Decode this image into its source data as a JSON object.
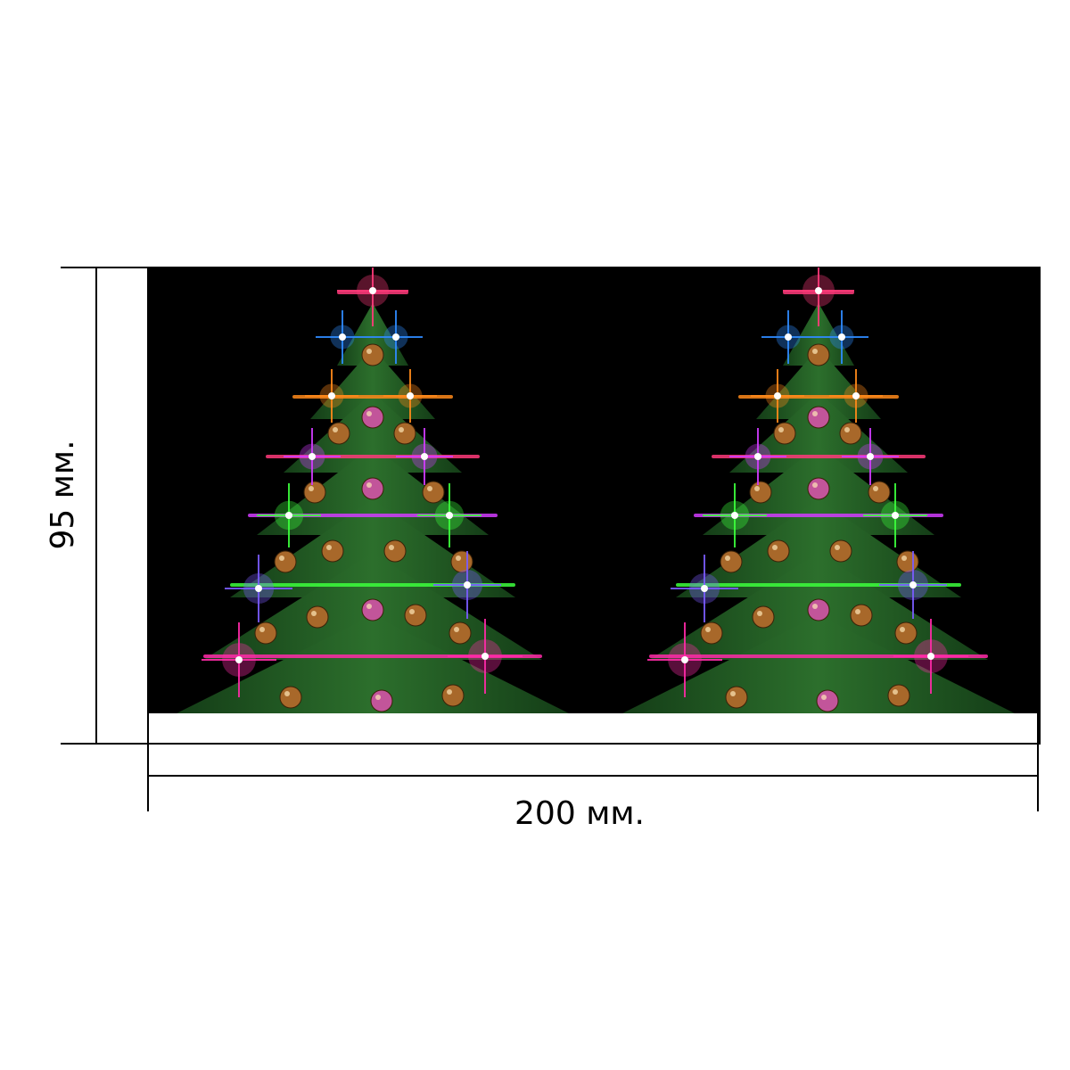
{
  "dimensions": {
    "width_label": "200 мм.",
    "height_label": "95 мм."
  },
  "artwork": {
    "background_color": "#000000",
    "trees": [
      {
        "name": "left-christmas-tree"
      },
      {
        "name": "right-christmas-tree"
      }
    ],
    "light_colors": [
      "#ff3a7a",
      "#2f8bff",
      "#ff8a1a",
      "#d23cff",
      "#3cff3c",
      "#7a5cff",
      "#ff2aa8"
    ],
    "tree_color": "#1f5a22",
    "ornament_colors": [
      "#a8682a",
      "#c2559a"
    ]
  }
}
